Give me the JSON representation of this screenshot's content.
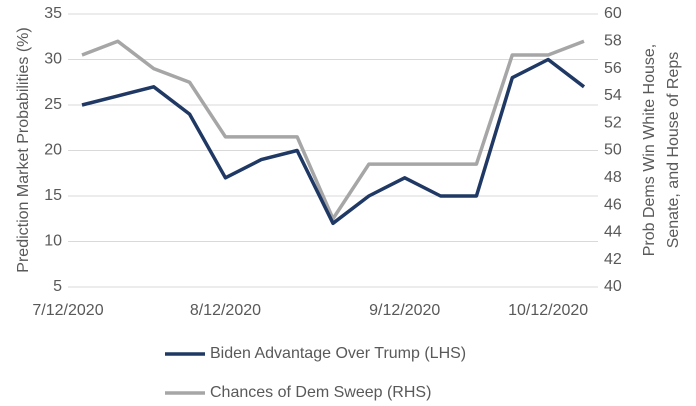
{
  "chart_data": {
    "type": "line",
    "ylabel": "Prediction Market Probabilities (%)",
    "y2label": [
      "Prob Dems Win White House,",
      "Senate, and House of Reps"
    ],
    "categories": [
      "7/12/2020",
      null,
      null,
      null,
      "8/12/2020",
      null,
      null,
      null,
      null,
      "9/12/2020",
      null,
      null,
      null,
      "10/12/2020",
      null
    ],
    "series": [
      {
        "name": "Biden Advantage Over Trump (LHS)",
        "color": "#1f3864",
        "axis": "y",
        "values": [
          25,
          26,
          27,
          24,
          17,
          19,
          20,
          12,
          15,
          17,
          15,
          15,
          28,
          30,
          27
        ]
      },
      {
        "name": "Chances of Dem Sweep (RHS)",
        "color": "#a6a6a6",
        "axis": "y2",
        "values": [
          57,
          58,
          56,
          55,
          51,
          51,
          51,
          45,
          49,
          49,
          49,
          49,
          57,
          57,
          58
        ]
      }
    ],
    "ylim": [
      5,
      35
    ],
    "yticks": [
      5,
      10,
      15,
      20,
      25,
      30,
      35
    ],
    "y2lim": [
      40,
      60
    ],
    "y2ticks": [
      40,
      42,
      44,
      46,
      48,
      50,
      52,
      54,
      56,
      58,
      60
    ],
    "grid": true,
    "legend": "bottom"
  }
}
